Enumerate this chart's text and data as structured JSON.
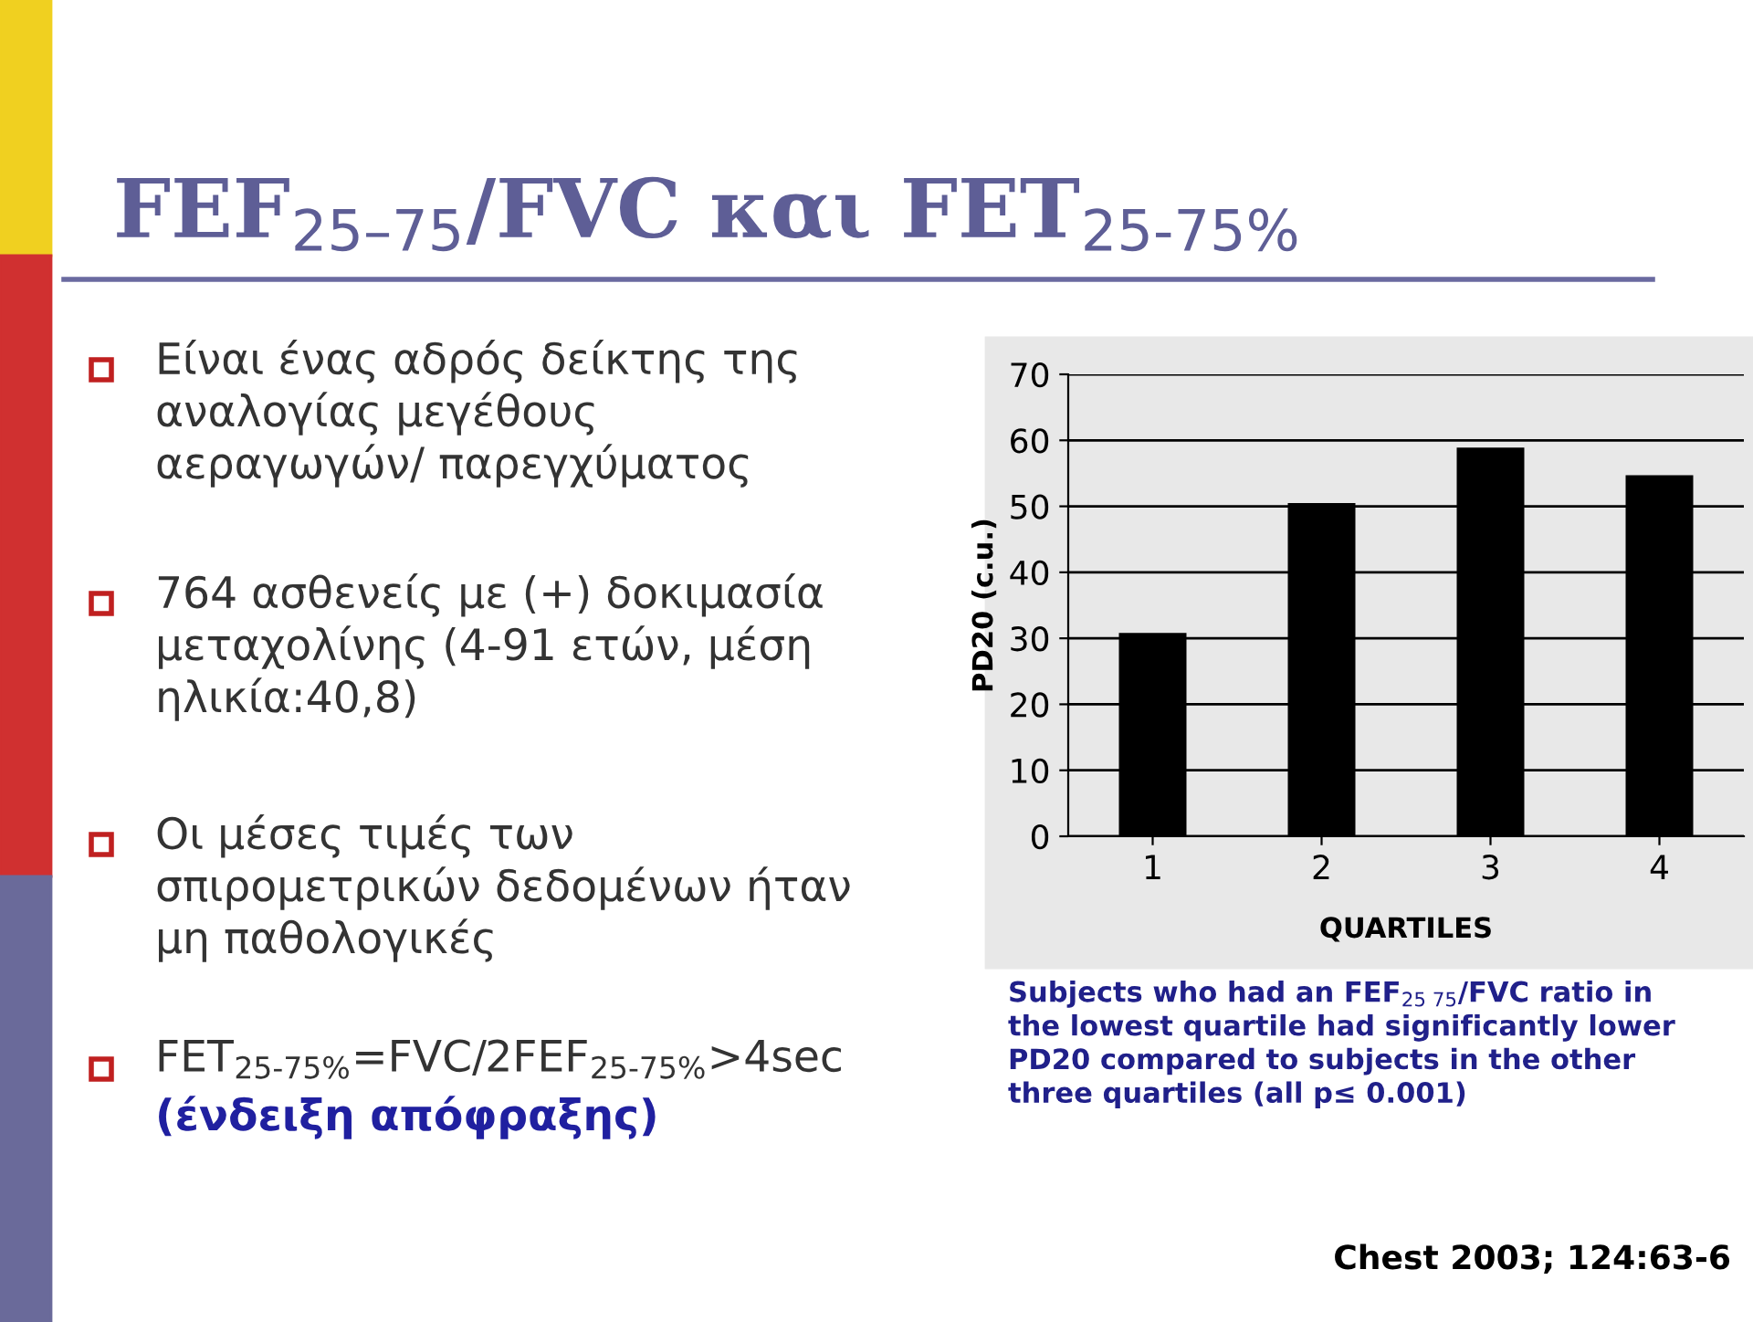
{
  "chart_data": {
    "type": "bar",
    "title": "FEF$_{25–75}$/FVC και FET$_{25-75%}$",
    "categories": [
      "1",
      "2",
      "3",
      "4"
    ],
    "values": [
      30.8,
      50.5,
      58.9,
      54.7
    ],
    "color": "#000000",
    "xlabel": "QUARTILES",
    "ylabel": "PD20 (c.u.)",
    "ylim": [
      0,
      70
    ],
    "yticks": [
      0,
      10,
      20,
      30,
      40,
      50,
      60,
      70
    ],
    "grid": "y",
    "annotations": [
      "Είναι ένας αδρός δείκτης της\nαναλογίας μεγέθους\nαεραγωγών/ παρεγχύματος",
      "764 ασθενείς με (+) δοκιμασία\nμεταχολίνης (4-91 ετών, μέση\nηλικία:40,8)",
      "Οι μέσες τιμές των\nσπιρομετρικών δεδομένων ήταν\nμη παθολογικές",
      "FET$_{25-75%}$=FVC/2FEF$_{25-75%}$>4sec",
      "(ένδειξη απόφραξης)",
      "Subjects who had an FEF$_{25 75}$/FVC ratio in\nthe lowest quartile had significantly lower\nPD20 compared to subjects in the other\nthree quartiles (all p≤ 0.001)",
      "Chest 2003; 124:63-6"
    ]
  }
}
